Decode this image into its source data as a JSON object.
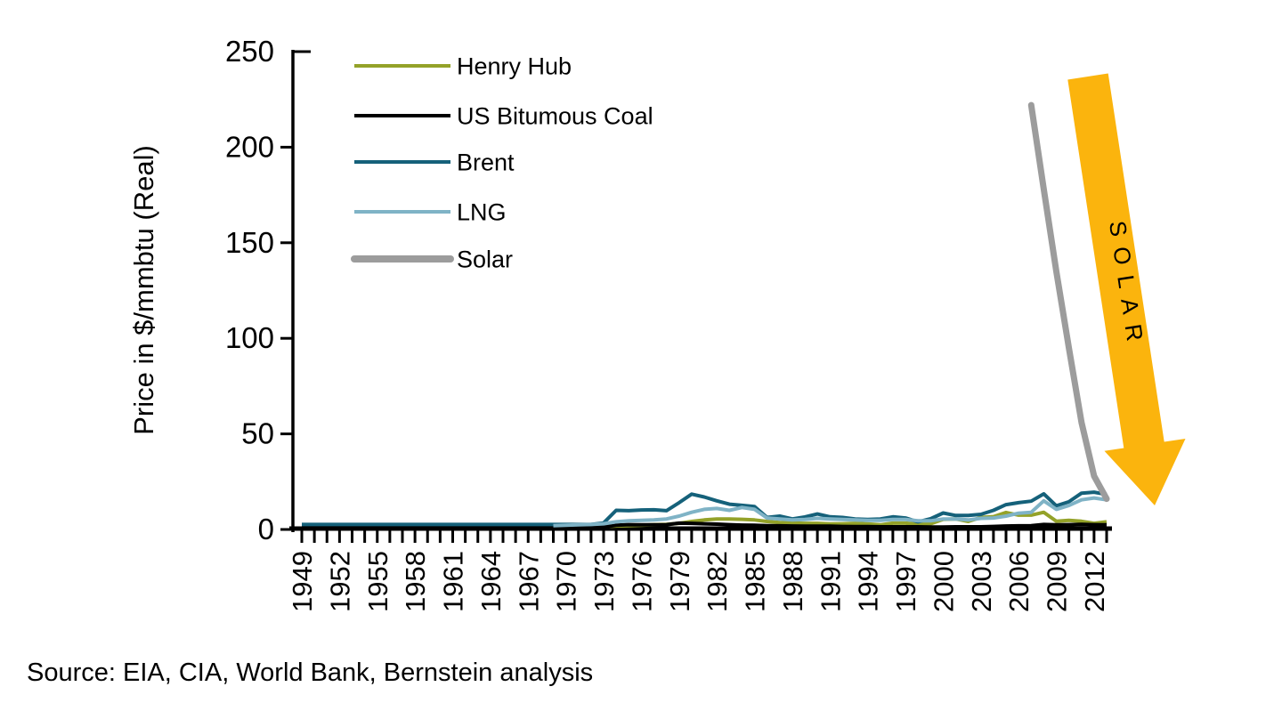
{
  "chart_data": {
    "type": "line",
    "title": "",
    "ylabel": "Price in $/mmbtu (Real)",
    "xlabel": "",
    "ylim": [
      0,
      250
    ],
    "xlim": [
      1949,
      2013
    ],
    "yticks": [
      0,
      50,
      100,
      150,
      200,
      250
    ],
    "xticks": [
      1949,
      1952,
      1955,
      1958,
      1961,
      1964,
      1967,
      1970,
      1973,
      1976,
      1979,
      1982,
      1985,
      1988,
      1991,
      1994,
      1997,
      2000,
      2003,
      2006,
      2009,
      2012
    ],
    "minor_x_tick_every": 1,
    "grid": false,
    "legend_position": "top-left-inside",
    "series": [
      {
        "name": "Henry Hub",
        "color": "#94A229",
        "line_width": 4,
        "start_year": 1949,
        "values": [
          1.5,
          1.5,
          1.5,
          1.5,
          1.5,
          1.5,
          1.5,
          1.5,
          1.5,
          1.5,
          1.5,
          1.5,
          1.5,
          1.5,
          1.5,
          1.5,
          1.5,
          1.5,
          1.5,
          1.5,
          1.5,
          1.5,
          1.5,
          1.5,
          1.5,
          1.8,
          2.0,
          2.2,
          2.5,
          2.7,
          3.2,
          4.2,
          5.0,
          5.5,
          5.5,
          5.3,
          5.0,
          4.2,
          3.6,
          3.4,
          3.2,
          3.2,
          2.9,
          3.0,
          3.2,
          2.9,
          2.4,
          3.3,
          3.3,
          2.8,
          3.0,
          5.3,
          5.5,
          4.2,
          6.3,
          6.7,
          8.9,
          7.5,
          7.5,
          9.0,
          4.3,
          4.8,
          4.3,
          3.2,
          4.0
        ]
      },
      {
        "name": "US Bitumous Coal",
        "color": "#000000",
        "line_width": 4,
        "start_year": 1949,
        "values": [
          1.2,
          1.2,
          1.2,
          1.2,
          1.2,
          1.2,
          1.2,
          1.2,
          1.2,
          1.2,
          1.2,
          1.2,
          1.2,
          1.2,
          1.2,
          1.2,
          1.2,
          1.2,
          1.2,
          1.2,
          1.2,
          1.2,
          1.2,
          1.2,
          1.2,
          2.2,
          2.5,
          2.4,
          2.4,
          2.5,
          3.3,
          3.2,
          3.0,
          2.8,
          2.5,
          2.3,
          2.2,
          2.0,
          1.9,
          1.8,
          1.7,
          1.7,
          1.7,
          1.6,
          1.5,
          1.5,
          1.4,
          1.4,
          1.4,
          1.4,
          1.3,
          1.3,
          1.4,
          1.4,
          1.4,
          1.6,
          1.8,
          1.9,
          2.0,
          2.6,
          2.4,
          2.5,
          2.7,
          2.5,
          2.4
        ]
      },
      {
        "name": "Brent",
        "color": "#15617A",
        "line_width": 4,
        "start_year": 1949,
        "values": [
          2.6,
          2.6,
          2.6,
          2.6,
          2.6,
          2.6,
          2.6,
          2.6,
          2.6,
          2.6,
          2.6,
          2.6,
          2.6,
          2.6,
          2.6,
          2.6,
          2.6,
          2.6,
          2.6,
          2.6,
          2.6,
          2.6,
          2.6,
          2.6,
          3.4,
          10.0,
          9.8,
          10.2,
          10.3,
          9.8,
          14.0,
          18.5,
          17.0,
          15.0,
          13.2,
          12.6,
          12.0,
          6.3,
          7.0,
          5.5,
          6.5,
          8.1,
          6.6,
          6.3,
          5.5,
          5.2,
          5.5,
          6.6,
          6.0,
          4.0,
          5.6,
          8.6,
          7.3,
          7.3,
          7.9,
          10.0,
          13.0,
          14.0,
          14.8,
          18.6,
          12.4,
          14.5,
          19.0,
          19.5,
          18.3
        ]
      },
      {
        "name": "LNG",
        "color": "#7FB3C6",
        "line_width": 4,
        "start_year": 1969,
        "values": [
          2.0,
          2.2,
          2.4,
          2.6,
          3.0,
          4.0,
          4.5,
          4.8,
          5.0,
          5.5,
          7.0,
          9.0,
          10.5,
          11.0,
          10.0,
          11.5,
          10.5,
          6.0,
          5.5,
          5.0,
          5.2,
          5.8,
          5.5,
          5.2,
          5.0,
          4.8,
          4.8,
          5.2,
          5.2,
          4.5,
          4.5,
          5.5,
          5.5,
          5.0,
          5.8,
          6.0,
          7.0,
          8.5,
          9.0,
          15.0,
          10.5,
          12.5,
          15.5,
          16.5,
          15.5
        ]
      },
      {
        "name": "Solar",
        "color": "#9C9C9C",
        "line_width": 7,
        "start_year": 2007,
        "values": [
          222,
          178,
          135,
          95,
          56,
          28,
          16
        ]
      }
    ],
    "annotation": {
      "label": "SOLAR",
      "arrow_color": "#FBB40D",
      "label_color": "#000000"
    }
  },
  "axis_color": "#000000",
  "source_note": "Source: EIA, CIA, World Bank, Bernstein analysis"
}
